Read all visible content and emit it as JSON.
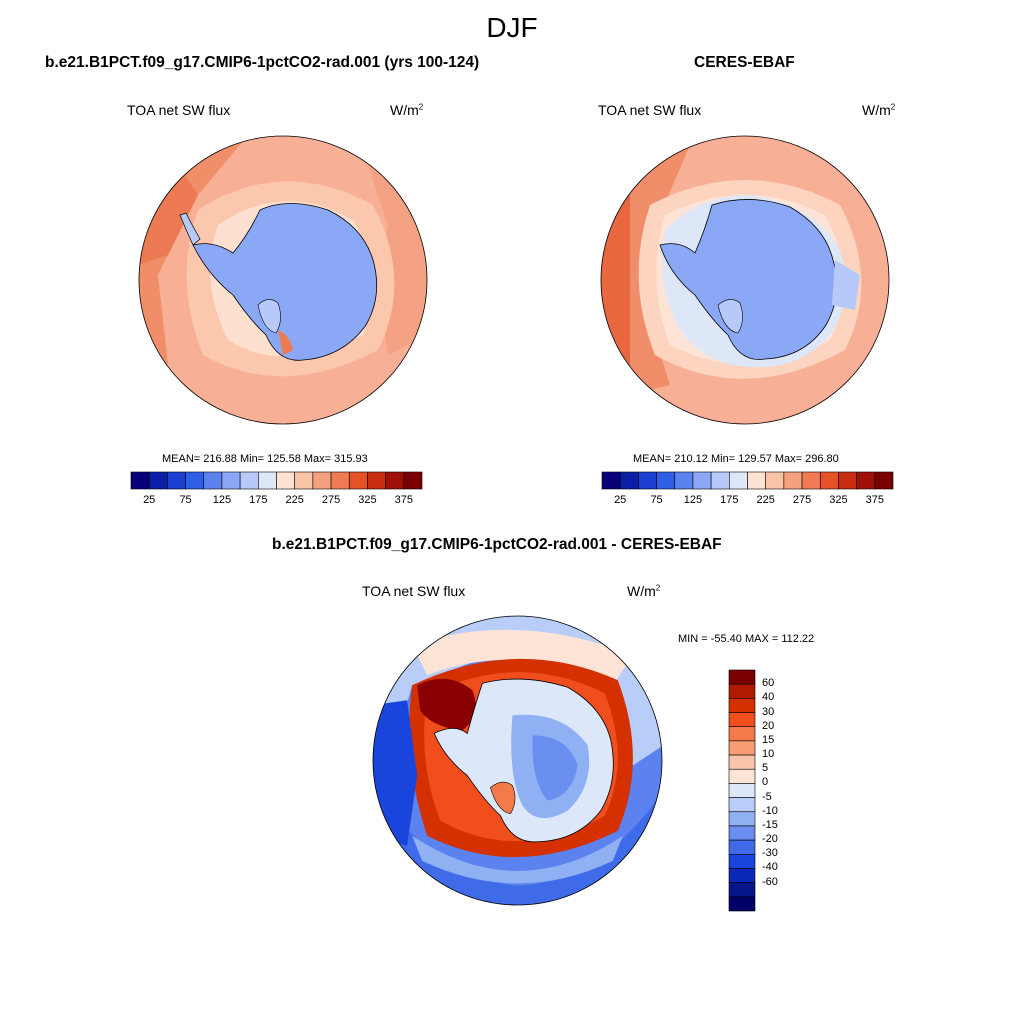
{
  "title": "DJF",
  "panels": [
    {
      "case_title": "b.e21.B1PCT.f09_g17.CMIP6-1pctCO2-rad.001 (yrs 100-124)",
      "variable": "TOA net SW flux",
      "units_base": "W/m",
      "units_exp": "2",
      "stats": "MEAN= 216.88  Min= 125.58  Max= 315.93"
    },
    {
      "case_title": "CERES-EBAF",
      "variable": "TOA net SW flux",
      "units_base": "W/m",
      "units_exp": "2",
      "stats": "MEAN= 210.12  Min= 129.57  Max= 296.80"
    },
    {
      "case_title": "b.e21.B1PCT.f09_g17.CMIP6-1pctCO2-rad.001 - CERES-EBAF",
      "variable": "TOA net SW flux",
      "units_base": "W/m",
      "units_exp": "2",
      "stats": "MIN = -55.40 MAX = 112.22"
    }
  ],
  "abs_colorbar": {
    "colors": [
      "#08007a",
      "#0b1fa6",
      "#1a3fd0",
      "#2e5fe6",
      "#5b82ef",
      "#8aa8f5",
      "#b6c9f8",
      "#dde7f8",
      "#fde2d2",
      "#f9c3a6",
      "#f5a17f",
      "#f07b55",
      "#e65226",
      "#c92d10",
      "#a11008",
      "#7a0000"
    ],
    "labels": [
      "25",
      "75",
      "125",
      "175",
      "225",
      "275",
      "325",
      "375"
    ]
  },
  "diff_colorbar": {
    "colors": [
      "#7a0000",
      "#b01a00",
      "#d43000",
      "#f04e1c",
      "#f57a4a",
      "#f89d76",
      "#fbc4a8",
      "#fde4d6",
      "#dce8fa",
      "#b8cef8",
      "#90b0f4",
      "#6a8ff0",
      "#3f6ae8",
      "#1a45dd",
      "#0b28b8",
      "#05158a",
      "#000066"
    ],
    "labels": [
      "60",
      "40",
      "30",
      "20",
      "15",
      "10",
      "5",
      "0",
      "-5",
      "-10",
      "-15",
      "-20",
      "-30",
      "-40",
      "-60"
    ]
  },
  "map_colors": {
    "ocean_light": "#fbd3bd",
    "ocean_mid": "#f7b095",
    "ocean_dark": "#f08e6a",
    "ocean_red": "#e8673f",
    "ice": "#8aa8f5",
    "ice_light": "#b6c9f8",
    "ice_pale": "#dde7f8",
    "diff_red": "#d43000",
    "diff_darkred": "#8a0000",
    "diff_blue": "#3f6ae8",
    "diff_pale": "#dce8fa"
  }
}
